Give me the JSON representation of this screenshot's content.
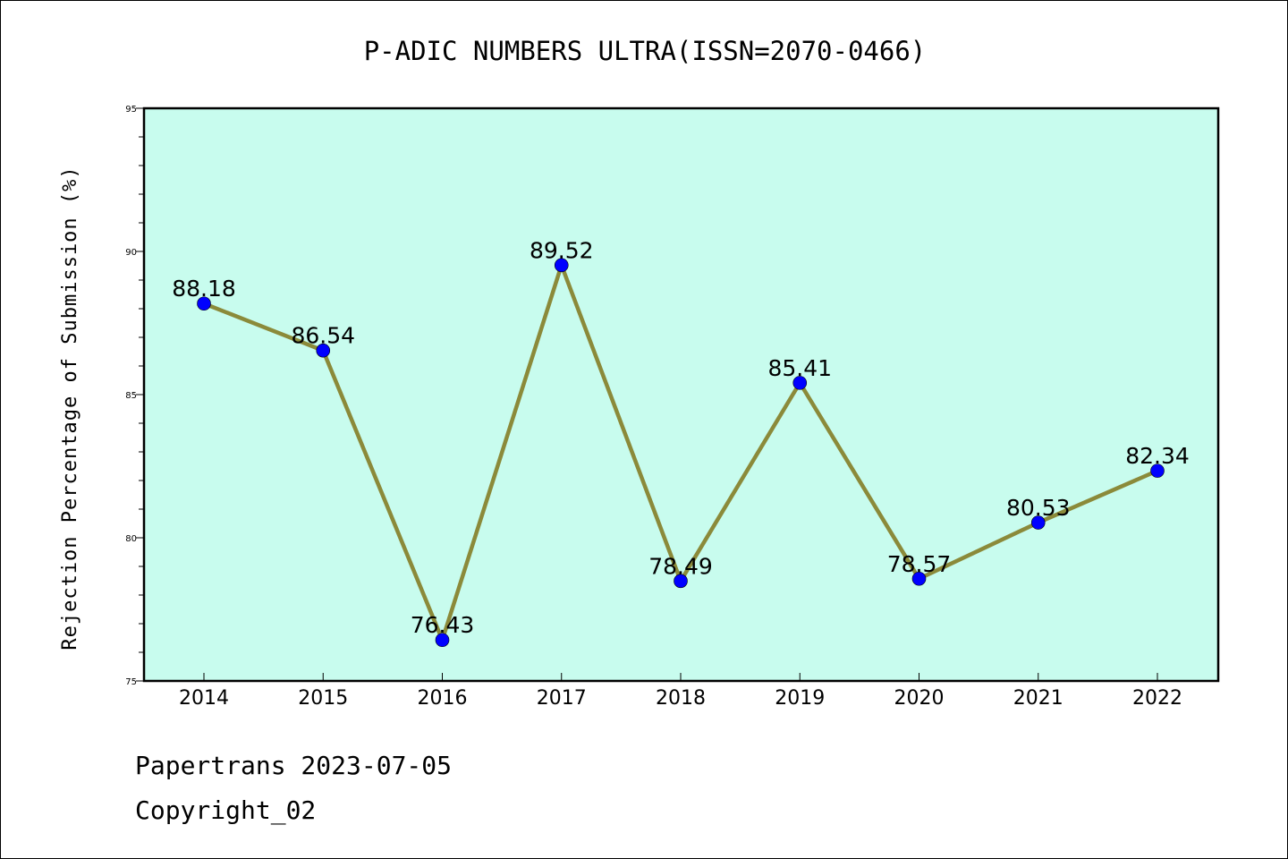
{
  "chart_data": {
    "type": "line",
    "title": "P-ADIC NUMBERS ULTRA(ISSN=2070-0466)",
    "xlabel": "",
    "ylabel": "Rejection Percentage of Submission (%)",
    "categories": [
      "2014",
      "2015",
      "2016",
      "2017",
      "2018",
      "2019",
      "2020",
      "2021",
      "2022"
    ],
    "values": [
      88.18,
      86.54,
      76.43,
      89.52,
      78.49,
      85.41,
      78.57,
      80.53,
      82.34
    ],
    "data_labels": [
      "88.18",
      "86.54",
      "76.43",
      "89.52",
      "78.49",
      "85.41",
      "78.57",
      "80.53",
      "82.34"
    ],
    "ylim": [
      75,
      95
    ],
    "yticks": [
      "75",
      "80",
      "85",
      "90",
      "95"
    ],
    "grid": false,
    "legend": "none",
    "colors": {
      "plot_background": "#c8fcee",
      "line": "#8b8a3a",
      "marker": "#0000ff"
    }
  },
  "footer": {
    "source": "Papertrans 2023-07-05",
    "copyright": "Copyright_02"
  }
}
